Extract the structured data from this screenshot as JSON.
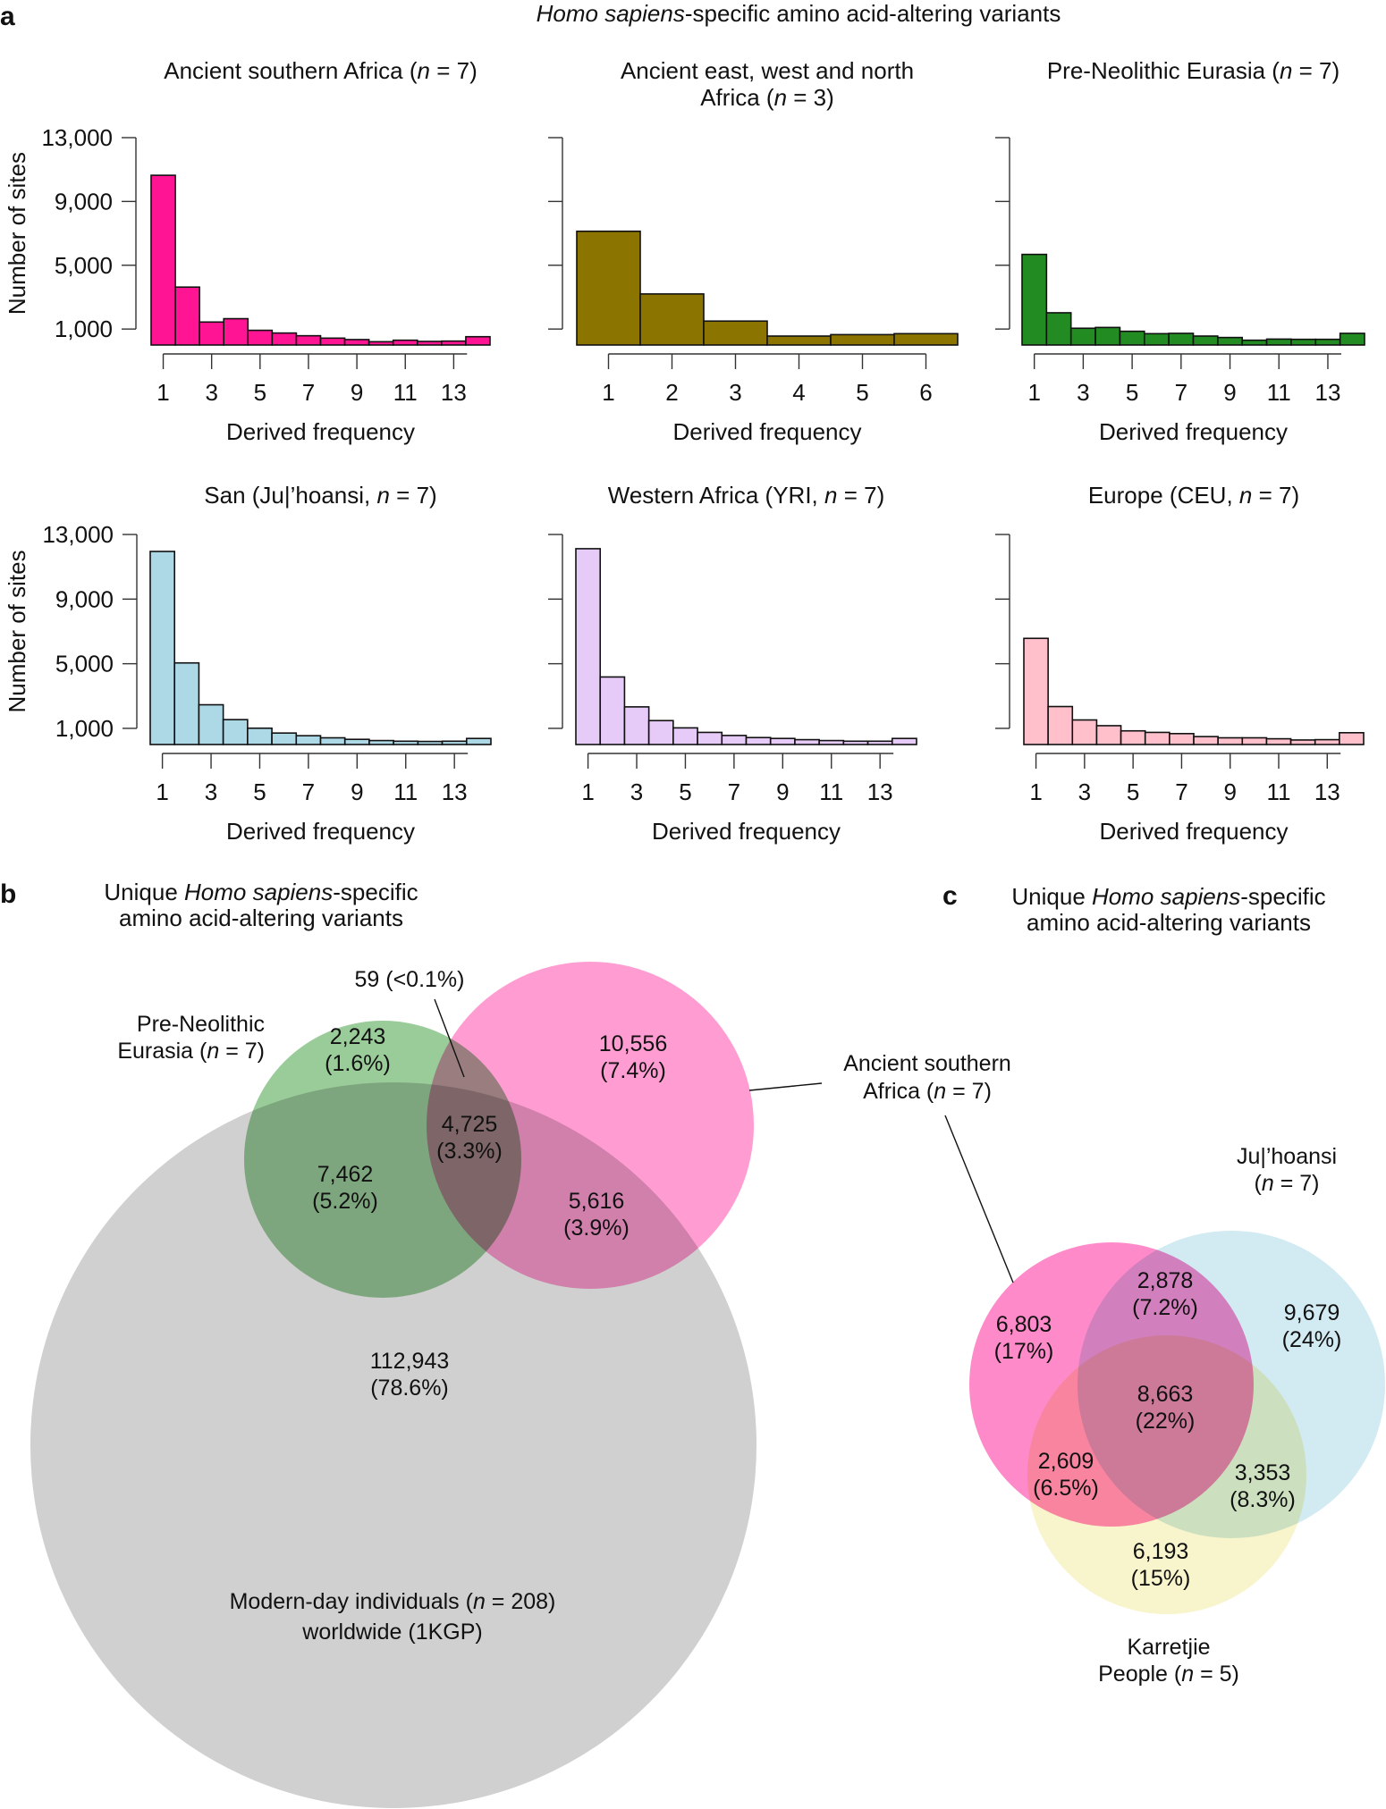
{
  "figure": {
    "panel_a_letter": "a",
    "panel_b_letter": "b",
    "panel_c_letter": "c",
    "panel_a_title_italic": "Homo sapiens",
    "panel_a_title_rest": "-specific amino acid-altering variants"
  },
  "chart_data": [
    {
      "type": "bar",
      "id": "ancient-southern-africa",
      "title": "Ancient southern Africa (n = 7)",
      "title_lines": [
        "Ancient southern Africa (",
        "n",
        " = 7)"
      ],
      "xlabel": "Derived frequency",
      "ylabel": "Number of sites",
      "color": "#ff1493",
      "categories": [
        1,
        2,
        3,
        4,
        5,
        6,
        7,
        8,
        9,
        10,
        11,
        12,
        13,
        14
      ],
      "x_tick_labels": [
        "1",
        "3",
        "5",
        "7",
        "9",
        "11",
        "13"
      ],
      "y_ticks": [
        1000,
        5000,
        9000,
        13000
      ],
      "y_tick_labels": [
        "1,000",
        "5,000",
        "9,000",
        "13,000"
      ],
      "ylim": [
        0,
        13000
      ],
      "values": [
        10640,
        3630,
        1440,
        1650,
        920,
        750,
        580,
        430,
        340,
        205,
        300,
        225,
        245,
        520
      ]
    },
    {
      "type": "bar",
      "id": "ancient-east-west-north-africa",
      "title": "Ancient east, west and north Africa (n = 3)",
      "title_line1": "Ancient east, west and north",
      "title_line2": [
        "Africa (",
        "n",
        " = 3)"
      ],
      "xlabel": "Derived frequency",
      "ylabel": "",
      "color": "#8b7500",
      "categories": [
        1,
        2,
        3,
        4,
        5,
        6
      ],
      "x_tick_labels": [
        "1",
        "2",
        "3",
        "4",
        "5",
        "6"
      ],
      "y_ticks": [
        1000,
        5000,
        9000,
        13000
      ],
      "y_tick_labels": [],
      "ylim": [
        0,
        13000
      ],
      "values": [
        7130,
        3200,
        1500,
        560,
        650,
        710
      ]
    },
    {
      "type": "bar",
      "id": "pre-neolithic-eurasia",
      "title": "Pre-Neolithic Eurasia (n = 7)",
      "title_lines": [
        "Pre-Neolithic Eurasia (",
        "n",
        " = 7)"
      ],
      "xlabel": "Derived frequency",
      "ylabel": "",
      "color": "#228b22",
      "categories": [
        1,
        2,
        3,
        4,
        5,
        6,
        7,
        8,
        9,
        10,
        11,
        12,
        13,
        14
      ],
      "x_tick_labels": [
        "1",
        "3",
        "5",
        "7",
        "9",
        "11",
        "13"
      ],
      "y_ticks": [
        1000,
        5000,
        9000,
        13000
      ],
      "y_tick_labels": [],
      "ylim": [
        0,
        13000
      ],
      "values": [
        5680,
        2020,
        1050,
        1100,
        860,
        710,
        730,
        560,
        470,
        300,
        370,
        355,
        355,
        730
      ]
    },
    {
      "type": "bar",
      "id": "san-juhoansi",
      "title": "San (Ju|’hoansi, n = 7)",
      "title_lines": [
        "San (Ju|’hoansi, ",
        "n",
        " = 7)"
      ],
      "xlabel": "Derived frequency",
      "ylabel": "Number of sites",
      "color": "#add8e6",
      "categories": [
        1,
        2,
        3,
        4,
        5,
        6,
        7,
        8,
        9,
        10,
        11,
        12,
        13,
        14
      ],
      "x_tick_labels": [
        "1",
        "3",
        "5",
        "7",
        "9",
        "11",
        "13"
      ],
      "y_ticks": [
        1000,
        5000,
        9000,
        13000
      ],
      "y_tick_labels": [
        "1,000",
        "5,000",
        "9,000",
        "13,000"
      ],
      "ylim": [
        0,
        13000
      ],
      "values": [
        11950,
        5050,
        2460,
        1540,
        1010,
        710,
        545,
        415,
        320,
        245,
        205,
        190,
        205,
        375
      ]
    },
    {
      "type": "bar",
      "id": "western-africa-yri",
      "title": "Western Africa (YRI, n = 7)",
      "title_lines": [
        "Western Africa (YRI, ",
        "n",
        " = 7)"
      ],
      "xlabel": "Derived frequency",
      "ylabel": "",
      "color": "#e6caf8",
      "categories": [
        1,
        2,
        3,
        4,
        5,
        6,
        7,
        8,
        9,
        10,
        11,
        12,
        13,
        14
      ],
      "x_tick_labels": [
        "1",
        "3",
        "5",
        "7",
        "9",
        "11",
        "13"
      ],
      "y_ticks": [
        1000,
        5000,
        9000,
        13000
      ],
      "y_tick_labels": [],
      "ylim": [
        0,
        13000
      ],
      "values": [
        12120,
        4180,
        2330,
        1480,
        1030,
        750,
        560,
        430,
        375,
        300,
        245,
        205,
        205,
        375
      ]
    },
    {
      "type": "bar",
      "id": "europe-ceu",
      "title": "Europe (CEU, n = 7)",
      "title_lines": [
        "Europe (CEU, ",
        "n",
        " = 7)"
      ],
      "xlabel": "Derived frequency",
      "ylabel": "",
      "color": "#ffc0cb",
      "categories": [
        1,
        2,
        3,
        4,
        5,
        6,
        7,
        8,
        9,
        10,
        11,
        12,
        13,
        14
      ],
      "x_tick_labels": [
        "1",
        "3",
        "5",
        "7",
        "9",
        "11",
        "13"
      ],
      "y_ticks": [
        1000,
        5000,
        9000,
        13000
      ],
      "y_tick_labels": [],
      "ylim": [
        0,
        13000
      ],
      "values": [
        6570,
        2350,
        1520,
        1165,
        845,
        750,
        675,
        490,
        415,
        415,
        355,
        280,
        300,
        730
      ]
    },
    {
      "type": "venn",
      "id": "venn-b",
      "title_line1": [
        "Unique ",
        "Homo sapiens",
        "-specific"
      ],
      "title_line2": "amino acid-altering variants",
      "sets": [
        {
          "name": "Modern-day individuals (n = 208) worldwide (1KGP)",
          "line1": [
            "Modern-day individuals (",
            "n",
            " = 208)"
          ],
          "line2": "worldwide (1KGP)",
          "color": "#d0d0d0"
        },
        {
          "name": "Pre-Neolithic Eurasia (n = 7)",
          "line1": "Pre-Neolithic",
          "line2": [
            "Eurasia (",
            "n",
            " = 7)"
          ],
          "color": "#8fc68f"
        },
        {
          "name": "Ancient southern Africa (n = 7)",
          "line1": "Ancient southern",
          "line2": [
            "Africa (",
            "n",
            " = 7)"
          ],
          "color": "#ff88c8"
        }
      ],
      "regions": [
        {
          "sets": [
            "Pre-Neolithic Eurasia"
          ],
          "count": "2,243",
          "percent": "(1.6%)"
        },
        {
          "sets": [
            "Ancient southern Africa"
          ],
          "count": "10,556",
          "percent": "(7.4%)"
        },
        {
          "sets": [
            "Pre-Neolithic Eurasia",
            "Ancient southern Africa",
            "Modern-day"
          ],
          "count": "4,725",
          "percent": "(3.3%)"
        },
        {
          "sets": [
            "Pre-Neolithic Eurasia",
            "Modern-day"
          ],
          "count": "7,462",
          "percent": "(5.2%)"
        },
        {
          "sets": [
            "Ancient southern Africa",
            "Modern-day"
          ],
          "count": "5,616",
          "percent": "(3.9%)"
        },
        {
          "sets": [
            "Modern-day"
          ],
          "count": "112,943",
          "percent": "(78.6%)"
        },
        {
          "sets": [
            "Pre-Neolithic Eurasia",
            "Ancient southern Africa"
          ],
          "count": "59",
          "percent": "(<0.1%)",
          "callout": "59 (<0.1%)"
        }
      ]
    },
    {
      "type": "venn",
      "id": "venn-c",
      "title_line1": [
        "Unique ",
        "Homo sapiens",
        "-specific"
      ],
      "title_line2": "amino acid-altering variants",
      "sets": [
        {
          "name": "Ancient southern Africa (n = 7)",
          "color": "#ff88c8"
        },
        {
          "name": "Ju|’hoansi (n = 7)",
          "line1": "Ju|’hoansi",
          "line2": [
            "(",
            "n",
            " = 7)"
          ],
          "color": "#add8e6"
        },
        {
          "name": "Karretjie People (n = 5)",
          "line1": "Karretjie",
          "line2": [
            "People (",
            "n",
            " = 5)"
          ],
          "color": "#f0e68c"
        }
      ],
      "regions": [
        {
          "sets": [
            "Ancient southern Africa"
          ],
          "count": "6,803",
          "percent": "(17%)"
        },
        {
          "sets": [
            "Ancient southern Africa",
            "Ju|’hoansi"
          ],
          "count": "2,878",
          "percent": "(7.2%)"
        },
        {
          "sets": [
            "Ju|’hoansi"
          ],
          "count": "9,679",
          "percent": "(24%)"
        },
        {
          "sets": [
            "Ancient southern Africa",
            "Ju|’hoansi",
            "Karretjie People"
          ],
          "count": "8,663",
          "percent": "(22%)"
        },
        {
          "sets": [
            "Ancient southern Africa",
            "Karretjie People"
          ],
          "count": "2,609",
          "percent": "(6.5%)"
        },
        {
          "sets": [
            "Ju|’hoansi",
            "Karretjie People"
          ],
          "count": "3,353",
          "percent": "(8.3%)"
        },
        {
          "sets": [
            "Karretjie People"
          ],
          "count": "6,193",
          "percent": "(15%)"
        }
      ]
    }
  ]
}
